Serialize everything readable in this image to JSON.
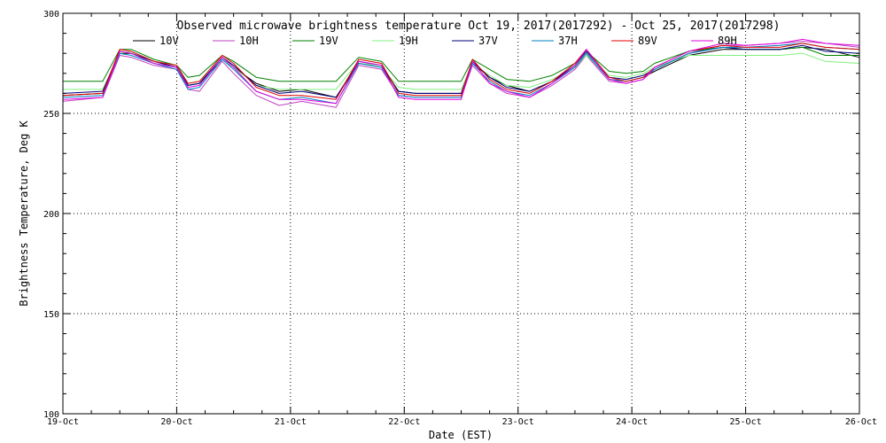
{
  "chart_data": {
    "type": "line",
    "title": "Observed microwave brightness temperature Oct 19, 2017(2017292) - Oct 25, 2017(2017298)",
    "xlabel": "Date (EST)",
    "ylabel": "Brightness Temperature, Deg K",
    "ylim": [
      100,
      300
    ],
    "yticks": [
      100,
      150,
      200,
      250,
      300
    ],
    "xlim": [
      0,
      7
    ],
    "x_tick_labels": [
      "19-Oct",
      "20-Oct",
      "21-Oct",
      "22-Oct",
      "23-Oct",
      "24-Oct",
      "25-Oct",
      "26-Oct"
    ],
    "grid": true,
    "legend_position": "top",
    "x": [
      0.0,
      0.35,
      0.5,
      0.6,
      0.8,
      1.0,
      1.1,
      1.2,
      1.4,
      1.5,
      1.7,
      1.9,
      2.1,
      2.4,
      2.6,
      2.8,
      2.95,
      3.1,
      3.3,
      3.5,
      3.6,
      3.75,
      3.9,
      4.1,
      4.3,
      4.5,
      4.6,
      4.8,
      4.95,
      5.1,
      5.2,
      5.5,
      5.8,
      6.0,
      6.3,
      6.5,
      6.7,
      7.0
    ],
    "series": [
      {
        "name": "10V",
        "color": "#000000",
        "values": [
          259,
          260,
          280,
          280,
          276,
          273,
          264,
          265,
          277,
          273,
          265,
          261,
          262,
          258,
          275,
          273,
          261,
          260,
          260,
          260,
          275,
          268,
          264,
          261,
          266,
          273,
          280,
          267,
          266,
          268,
          271,
          279,
          282,
          282,
          282,
          283,
          282,
          278
        ]
      },
      {
        "name": "10H",
        "color": "#c040c0",
        "values": [
          256,
          258,
          279,
          278,
          274,
          272,
          262,
          261,
          276,
          270,
          259,
          254,
          256,
          253,
          274,
          272,
          259,
          258,
          258,
          258,
          274,
          265,
          260,
          258,
          264,
          272,
          279,
          266,
          265,
          267,
          272,
          280,
          284,
          284,
          285,
          286,
          285,
          283
        ]
      },
      {
        "name": "19V",
        "color": "#008000",
        "values": [
          266,
          266,
          282,
          282,
          277,
          274,
          268,
          269,
          279,
          276,
          268,
          266,
          266,
          266,
          278,
          276,
          266,
          266,
          266,
          266,
          277,
          272,
          267,
          266,
          269,
          275,
          281,
          271,
          270,
          271,
          275,
          281,
          283,
          282,
          282,
          283,
          279,
          279
        ]
      },
      {
        "name": "19H",
        "color": "#80f080",
        "values": [
          262,
          262,
          280,
          281,
          275,
          273,
          265,
          266,
          277,
          273,
          264,
          262,
          262,
          262,
          276,
          273,
          263,
          262,
          262,
          262,
          275,
          269,
          264,
          263,
          267,
          273,
          279,
          269,
          268,
          270,
          273,
          279,
          279,
          279,
          279,
          280,
          276,
          275
        ]
      },
      {
        "name": "37V",
        "color": "#000080",
        "values": [
          260,
          261,
          281,
          280,
          276,
          273,
          264,
          265,
          278,
          274,
          264,
          260,
          261,
          258,
          276,
          274,
          261,
          260,
          260,
          260,
          276,
          268,
          263,
          261,
          266,
          274,
          281,
          268,
          267,
          269,
          272,
          280,
          283,
          282,
          282,
          284,
          281,
          280
        ]
      },
      {
        "name": "37H",
        "color": "#0080c0",
        "values": [
          258,
          259,
          280,
          279,
          275,
          272,
          262,
          263,
          277,
          272,
          261,
          257,
          258,
          255,
          275,
          273,
          259,
          258,
          258,
          258,
          275,
          266,
          261,
          259,
          265,
          273,
          280,
          267,
          266,
          268,
          272,
          280,
          283,
          283,
          284,
          285,
          283,
          282
        ]
      },
      {
        "name": "89V",
        "color": "#e00000",
        "values": [
          259,
          260,
          282,
          281,
          276,
          274,
          265,
          266,
          279,
          275,
          263,
          259,
          259,
          257,
          277,
          275,
          260,
          259,
          259,
          259,
          277,
          267,
          262,
          260,
          266,
          275,
          282,
          268,
          266,
          268,
          273,
          281,
          284,
          283,
          283,
          285,
          283,
          282
        ]
      },
      {
        "name": "89H",
        "color": "#e000e0",
        "values": [
          257,
          258,
          281,
          280,
          275,
          273,
          263,
          264,
          278,
          273,
          261,
          257,
          257,
          255,
          276,
          274,
          258,
          257,
          257,
          257,
          276,
          265,
          261,
          258,
          265,
          274,
          282,
          267,
          265,
          267,
          273,
          281,
          285,
          284,
          285,
          287,
          285,
          284
        ]
      }
    ]
  }
}
